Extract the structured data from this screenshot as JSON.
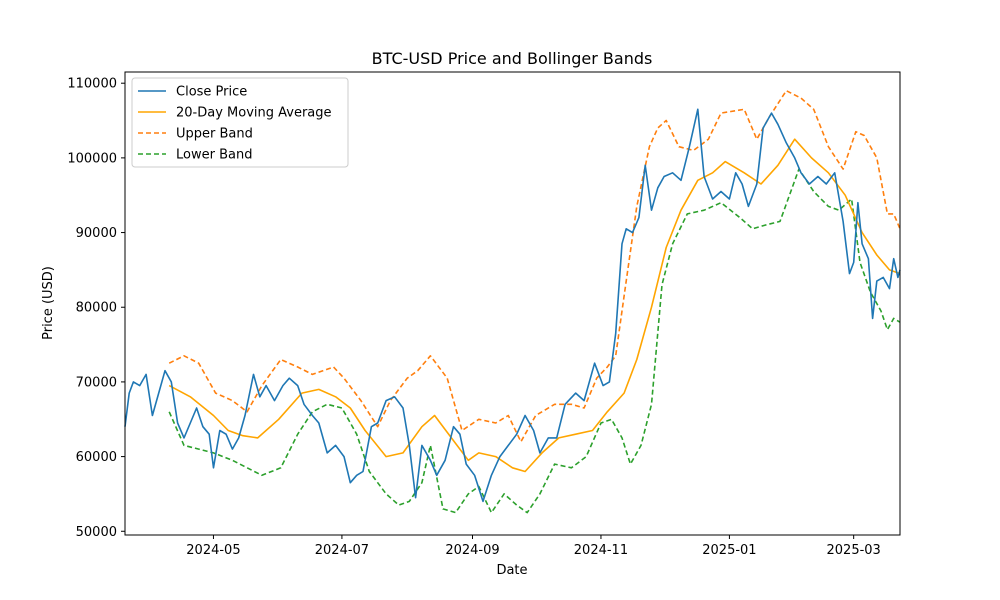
{
  "chart_data": {
    "type": "line",
    "title": "BTC-USD Price and Bollinger Bands",
    "xlabel": "Date",
    "ylabel": "Price (USD)",
    "x_range": [
      "2024-03-20",
      "2025-03-23"
    ],
    "ylim": [
      49500,
      111500
    ],
    "x_ticks": [
      "2024-05",
      "2024-07",
      "2024-09",
      "2024-11",
      "2025-01",
      "2025-03"
    ],
    "y_ticks": [
      50000,
      60000,
      70000,
      80000,
      90000,
      100000,
      110000
    ],
    "grid": false,
    "legend_position": "top-left",
    "series": [
      {
        "name": "Close Price",
        "color": "#1f77b4",
        "style": "solid",
        "points": [
          [
            "2024-03-20",
            64000
          ],
          [
            "2024-03-22",
            68500
          ],
          [
            "2024-03-24",
            70000
          ],
          [
            "2024-03-27",
            69500
          ],
          [
            "2024-03-30",
            71000
          ],
          [
            "2024-04-02",
            65500
          ],
          [
            "2024-04-05",
            68500
          ],
          [
            "2024-04-08",
            71500
          ],
          [
            "2024-04-11",
            70000
          ],
          [
            "2024-04-14",
            64500
          ],
          [
            "2024-04-17",
            62500
          ],
          [
            "2024-04-20",
            64500
          ],
          [
            "2024-04-23",
            66500
          ],
          [
            "2024-04-26",
            64000
          ],
          [
            "2024-04-29",
            63000
          ],
          [
            "2024-05-01",
            58500
          ],
          [
            "2024-05-04",
            63500
          ],
          [
            "2024-05-07",
            63000
          ],
          [
            "2024-05-10",
            61000
          ],
          [
            "2024-05-13",
            62500
          ],
          [
            "2024-05-16",
            65500
          ],
          [
            "2024-05-20",
            71000
          ],
          [
            "2024-05-23",
            68000
          ],
          [
            "2024-05-26",
            69500
          ],
          [
            "2024-05-30",
            67500
          ],
          [
            "2024-06-03",
            69500
          ],
          [
            "2024-06-06",
            70500
          ],
          [
            "2024-06-10",
            69500
          ],
          [
            "2024-06-13",
            67000
          ],
          [
            "2024-06-17",
            65500
          ],
          [
            "2024-06-20",
            64500
          ],
          [
            "2024-06-24",
            60500
          ],
          [
            "2024-06-28",
            61500
          ],
          [
            "2024-07-02",
            60000
          ],
          [
            "2024-07-05",
            56500
          ],
          [
            "2024-07-08",
            57500
          ],
          [
            "2024-07-11",
            58000
          ],
          [
            "2024-07-15",
            64000
          ],
          [
            "2024-07-18",
            64500
          ],
          [
            "2024-07-22",
            67500
          ],
          [
            "2024-07-26",
            68000
          ],
          [
            "2024-07-30",
            66500
          ],
          [
            "2024-08-02",
            61500
          ],
          [
            "2024-08-05",
            54500
          ],
          [
            "2024-08-08",
            61500
          ],
          [
            "2024-08-12",
            59500
          ],
          [
            "2024-08-15",
            57500
          ],
          [
            "2024-08-19",
            59500
          ],
          [
            "2024-08-23",
            64000
          ],
          [
            "2024-08-26",
            63000
          ],
          [
            "2024-08-29",
            59000
          ],
          [
            "2024-09-02",
            57500
          ],
          [
            "2024-09-06",
            54000
          ],
          [
            "2024-09-10",
            57500
          ],
          [
            "2024-09-14",
            60000
          ],
          [
            "2024-09-18",
            61500
          ],
          [
            "2024-09-22",
            63000
          ],
          [
            "2024-09-26",
            65500
          ],
          [
            "2024-09-30",
            63500
          ],
          [
            "2024-10-03",
            60500
          ],
          [
            "2024-10-07",
            62500
          ],
          [
            "2024-10-11",
            62500
          ],
          [
            "2024-10-15",
            67000
          ],
          [
            "2024-10-20",
            68500
          ],
          [
            "2024-10-24",
            67500
          ],
          [
            "2024-10-29",
            72500
          ],
          [
            "2024-11-02",
            69500
          ],
          [
            "2024-11-05",
            70000
          ],
          [
            "2024-11-08",
            76500
          ],
          [
            "2024-11-11",
            88500
          ],
          [
            "2024-11-13",
            90500
          ],
          [
            "2024-11-16",
            90000
          ],
          [
            "2024-11-19",
            92000
          ],
          [
            "2024-11-22",
            99000
          ],
          [
            "2024-11-25",
            93000
          ],
          [
            "2024-11-28",
            96000
          ],
          [
            "2024-12-01",
            97500
          ],
          [
            "2024-12-05",
            98000
          ],
          [
            "2024-12-09",
            97000
          ],
          [
            "2024-12-13",
            101500
          ],
          [
            "2024-12-17",
            106500
          ],
          [
            "2024-12-20",
            97500
          ],
          [
            "2024-12-24",
            94500
          ],
          [
            "2024-12-28",
            95500
          ],
          [
            "2025-01-01",
            94500
          ],
          [
            "2025-01-04",
            98000
          ],
          [
            "2025-01-07",
            96500
          ],
          [
            "2025-01-10",
            93500
          ],
          [
            "2025-01-14",
            96500
          ],
          [
            "2025-01-17",
            104000
          ],
          [
            "2025-01-21",
            106000
          ],
          [
            "2025-01-24",
            104500
          ],
          [
            "2025-01-28",
            102000
          ],
          [
            "2025-02-01",
            100000
          ],
          [
            "2025-02-04",
            98000
          ],
          [
            "2025-02-08",
            96500
          ],
          [
            "2025-02-12",
            97500
          ],
          [
            "2025-02-16",
            96500
          ],
          [
            "2025-02-20",
            98000
          ],
          [
            "2025-02-24",
            91500
          ],
          [
            "2025-02-27",
            84500
          ],
          [
            "2025-03-01",
            86000
          ],
          [
            "2025-03-03",
            94000
          ],
          [
            "2025-03-05",
            88500
          ],
          [
            "2025-03-08",
            86500
          ],
          [
            "2025-03-10",
            78500
          ],
          [
            "2025-03-12",
            83500
          ],
          [
            "2025-03-15",
            84000
          ],
          [
            "2025-03-18",
            82500
          ],
          [
            "2025-03-20",
            86500
          ],
          [
            "2025-03-22",
            84000
          ],
          [
            "2025-03-23",
            85000
          ]
        ]
      },
      {
        "name": "20-Day Moving Average",
        "color": "#ffa500",
        "style": "solid",
        "points": [
          [
            "2024-04-10",
            69500
          ],
          [
            "2024-04-20",
            68000
          ],
          [
            "2024-05-01",
            65500
          ],
          [
            "2024-05-08",
            63500
          ],
          [
            "2024-05-15",
            62800
          ],
          [
            "2024-05-22",
            62500
          ],
          [
            "2024-06-01",
            65000
          ],
          [
            "2024-06-12",
            68500
          ],
          [
            "2024-06-20",
            69000
          ],
          [
            "2024-06-28",
            68000
          ],
          [
            "2024-07-05",
            66500
          ],
          [
            "2024-07-12",
            63500
          ],
          [
            "2024-07-22",
            60000
          ],
          [
            "2024-07-30",
            60500
          ],
          [
            "2024-08-08",
            64000
          ],
          [
            "2024-08-14",
            65500
          ],
          [
            "2024-08-22",
            62500
          ],
          [
            "2024-08-30",
            59500
          ],
          [
            "2024-09-04",
            60500
          ],
          [
            "2024-09-12",
            60000
          ],
          [
            "2024-09-20",
            58500
          ],
          [
            "2024-09-26",
            58000
          ],
          [
            "2024-10-04",
            60500
          ],
          [
            "2024-10-12",
            62500
          ],
          [
            "2024-10-20",
            63000
          ],
          [
            "2024-10-28",
            63500
          ],
          [
            "2024-11-04",
            66000
          ],
          [
            "2024-11-12",
            68500
          ],
          [
            "2024-11-18",
            73000
          ],
          [
            "2024-11-25",
            80000
          ],
          [
            "2024-12-02",
            88000
          ],
          [
            "2024-12-09",
            93000
          ],
          [
            "2024-12-17",
            97000
          ],
          [
            "2024-12-24",
            98000
          ],
          [
            "2024-12-30",
            99500
          ],
          [
            "2025-01-08",
            98000
          ],
          [
            "2025-01-16",
            96500
          ],
          [
            "2025-01-24",
            99000
          ],
          [
            "2025-02-01",
            102500
          ],
          [
            "2025-02-09",
            100000
          ],
          [
            "2025-02-17",
            98000
          ],
          [
            "2025-02-25",
            95000
          ],
          [
            "2025-03-05",
            90000
          ],
          [
            "2025-03-12",
            87000
          ],
          [
            "2025-03-18",
            85000
          ],
          [
            "2025-03-23",
            84500
          ]
        ]
      },
      {
        "name": "Upper Band",
        "color": "#ff7f0e",
        "style": "dashed",
        "points": [
          [
            "2024-04-10",
            72500
          ],
          [
            "2024-04-17",
            73500
          ],
          [
            "2024-04-24",
            72500
          ],
          [
            "2024-05-02",
            68500
          ],
          [
            "2024-05-10",
            67500
          ],
          [
            "2024-05-17",
            66000
          ],
          [
            "2024-05-24",
            69500
          ],
          [
            "2024-06-02",
            73000
          ],
          [
            "2024-06-10",
            72000
          ],
          [
            "2024-06-17",
            71000
          ],
          [
            "2024-06-27",
            72000
          ],
          [
            "2024-07-02",
            70500
          ],
          [
            "2024-07-10",
            67500
          ],
          [
            "2024-07-18",
            64000
          ],
          [
            "2024-07-24",
            67500
          ],
          [
            "2024-08-01",
            70500
          ],
          [
            "2024-08-06",
            71500
          ],
          [
            "2024-08-12",
            73500
          ],
          [
            "2024-08-20",
            70500
          ],
          [
            "2024-08-27",
            63500
          ],
          [
            "2024-09-04",
            65000
          ],
          [
            "2024-09-12",
            64500
          ],
          [
            "2024-09-18",
            65500
          ],
          [
            "2024-09-24",
            62000
          ],
          [
            "2024-10-01",
            65500
          ],
          [
            "2024-10-10",
            67000
          ],
          [
            "2024-10-18",
            67000
          ],
          [
            "2024-10-24",
            66500
          ],
          [
            "2024-10-30",
            70500
          ],
          [
            "2024-11-04",
            72000
          ],
          [
            "2024-11-08",
            73500
          ],
          [
            "2024-11-13",
            83500
          ],
          [
            "2024-11-18",
            93500
          ],
          [
            "2024-11-24",
            101500
          ],
          [
            "2024-11-28",
            104000
          ],
          [
            "2024-12-02",
            105000
          ],
          [
            "2024-12-08",
            101500
          ],
          [
            "2024-12-15",
            101000
          ],
          [
            "2024-12-22",
            102500
          ],
          [
            "2024-12-28",
            106000
          ],
          [
            "2025-01-08",
            106500
          ],
          [
            "2025-01-14",
            102500
          ],
          [
            "2025-01-20",
            105500
          ],
          [
            "2025-01-28",
            109000
          ],
          [
            "2025-02-04",
            108000
          ],
          [
            "2025-02-10",
            106500
          ],
          [
            "2025-02-17",
            101500
          ],
          [
            "2025-02-24",
            98500
          ],
          [
            "2025-03-02",
            103500
          ],
          [
            "2025-03-06",
            103000
          ],
          [
            "2025-03-12",
            100000
          ],
          [
            "2025-03-17",
            92500
          ],
          [
            "2025-03-20",
            92500
          ],
          [
            "2025-03-23",
            90500
          ]
        ]
      },
      {
        "name": "Lower Band",
        "color": "#2ca02c",
        "style": "dashed",
        "points": [
          [
            "2024-04-10",
            66000
          ],
          [
            "2024-04-17",
            61500
          ],
          [
            "2024-04-24",
            61000
          ],
          [
            "2024-05-01",
            60500
          ],
          [
            "2024-05-10",
            59500
          ],
          [
            "2024-05-17",
            58500
          ],
          [
            "2024-05-24",
            57500
          ],
          [
            "2024-06-02",
            58500
          ],
          [
            "2024-06-10",
            63000
          ],
          [
            "2024-06-17",
            66000
          ],
          [
            "2024-06-24",
            67000
          ],
          [
            "2024-07-01",
            66500
          ],
          [
            "2024-07-08",
            63000
          ],
          [
            "2024-07-14",
            58000
          ],
          [
            "2024-07-22",
            55000
          ],
          [
            "2024-07-28",
            53500
          ],
          [
            "2024-08-02",
            54000
          ],
          [
            "2024-08-08",
            56500
          ],
          [
            "2024-08-12",
            61500
          ],
          [
            "2024-08-18",
            53000
          ],
          [
            "2024-08-24",
            52500
          ],
          [
            "2024-08-30",
            55000
          ],
          [
            "2024-09-04",
            56000
          ],
          [
            "2024-09-10",
            52500
          ],
          [
            "2024-09-16",
            55000
          ],
          [
            "2024-09-22",
            53500
          ],
          [
            "2024-09-27",
            52500
          ],
          [
            "2024-10-03",
            55000
          ],
          [
            "2024-10-10",
            59000
          ],
          [
            "2024-10-18",
            58500
          ],
          [
            "2024-10-25",
            60000
          ],
          [
            "2024-11-01",
            64500
          ],
          [
            "2024-11-06",
            65000
          ],
          [
            "2024-11-11",
            62500
          ],
          [
            "2024-11-15",
            59000
          ],
          [
            "2024-11-20",
            61500
          ],
          [
            "2024-11-25",
            67000
          ],
          [
            "2024-11-30",
            83000
          ],
          [
            "2024-12-05",
            88500
          ],
          [
            "2024-12-12",
            92500
          ],
          [
            "2024-12-20",
            93000
          ],
          [
            "2024-12-28",
            94000
          ],
          [
            "2025-01-06",
            92000
          ],
          [
            "2025-01-12",
            90500
          ],
          [
            "2025-01-18",
            91000
          ],
          [
            "2025-01-25",
            91500
          ],
          [
            "2025-02-03",
            98500
          ],
          [
            "2025-02-10",
            95500
          ],
          [
            "2025-02-17",
            93500
          ],
          [
            "2025-02-22",
            93000
          ],
          [
            "2025-02-28",
            94500
          ],
          [
            "2025-03-04",
            86000
          ],
          [
            "2025-03-09",
            82000
          ],
          [
            "2025-03-14",
            79500
          ],
          [
            "2025-03-17",
            77000
          ],
          [
            "2025-03-20",
            78500
          ],
          [
            "2025-03-23",
            78000
          ]
        ]
      }
    ]
  }
}
